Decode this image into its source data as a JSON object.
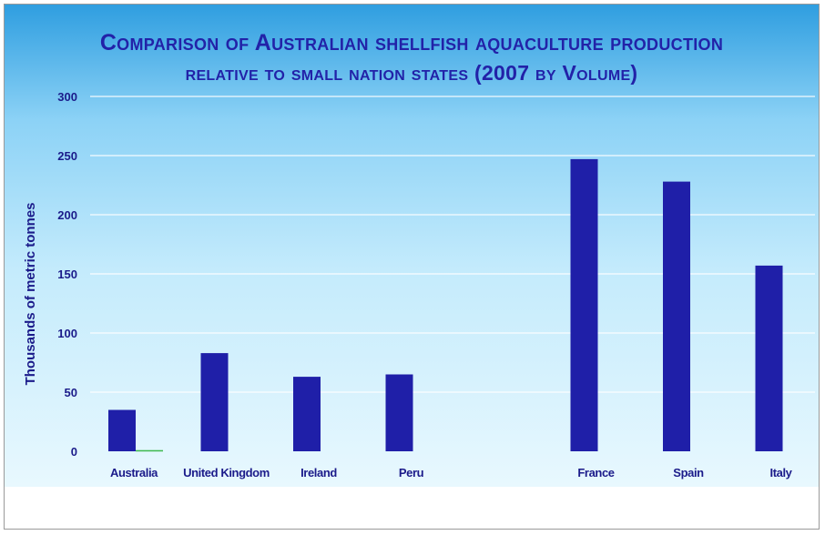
{
  "chart_data": {
    "type": "bar",
    "title_line_1": "Comparison of Australian shellfish aquaculture production",
    "title_line_2": "relative to small nation states (2007 by Volume)",
    "ylabel": "Thousands of metric tonnes",
    "xlabel": "",
    "ylim": [
      0,
      300
    ],
    "yticks": [
      0,
      50,
      100,
      150,
      200,
      250,
      300
    ],
    "grid": true,
    "categories": [
      "Australia",
      "United Kingdom",
      "Ireland",
      "Peru",
      "",
      "France",
      "Spain",
      "Italy"
    ],
    "series": [
      {
        "values": [
          35,
          83,
          63,
          65,
          0,
          247,
          228,
          157
        ],
        "color": "#1f1fa8"
      },
      {
        "values": [
          1,
          0,
          0,
          0,
          0,
          0,
          0,
          0
        ],
        "color": "#3cb84c"
      }
    ]
  }
}
